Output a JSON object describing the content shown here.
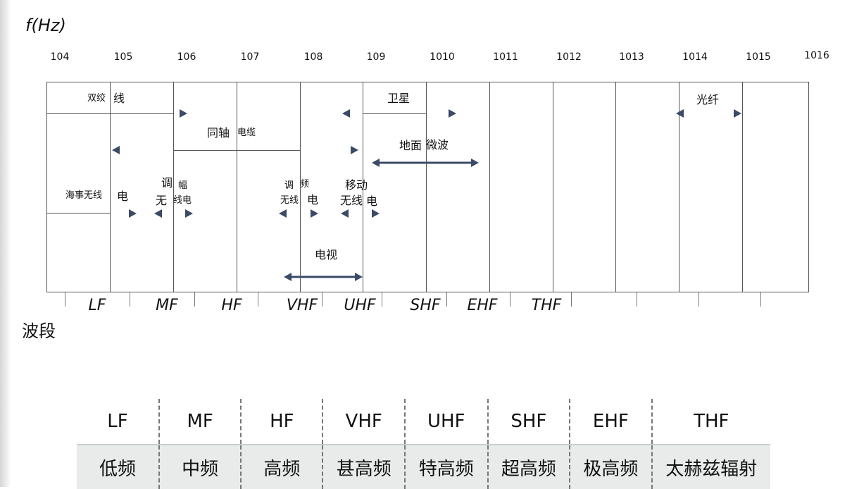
{
  "axis_title": "f(Hz)",
  "band_axis_title": "波段",
  "freq_ticks": [
    "104",
    "105",
    "106",
    "107",
    "108",
    "109",
    "1010",
    "1011",
    "1012",
    "1013",
    "1014",
    "1015",
    "1016"
  ],
  "media": {
    "twisted_pair": [
      "双绞",
      "线"
    ],
    "coax": [
      "同轴",
      "电缆"
    ],
    "maritime": [
      "海事无线",
      "电"
    ],
    "am_radio": [
      "调",
      "幅",
      "无",
      "线电"
    ],
    "fm_radio": [
      "调",
      "频",
      "无线",
      "电"
    ],
    "mobile_radio": [
      "移动",
      "无线",
      "电"
    ],
    "satellite": "卫星",
    "microwave": [
      "地面",
      "微波"
    ],
    "optical_fiber": "光纤",
    "tv": "电视"
  },
  "band_labels": [
    "LF",
    "MF",
    "HF",
    "VHF",
    "UHF",
    "SHF",
    "EHF",
    "THF"
  ],
  "table": {
    "codes": [
      "LF",
      "MF",
      "HF",
      "VHF",
      "UHF",
      "SHF",
      "EHF",
      "THF"
    ],
    "names": [
      "低频",
      "中频",
      "高频",
      "甚高频",
      "特高频",
      "超高频",
      "极高频",
      "太赫兹辐射"
    ]
  },
  "colors": {
    "arrow": "#3b4a66",
    "line": "#555555",
    "table_band": "#e8ebea"
  }
}
